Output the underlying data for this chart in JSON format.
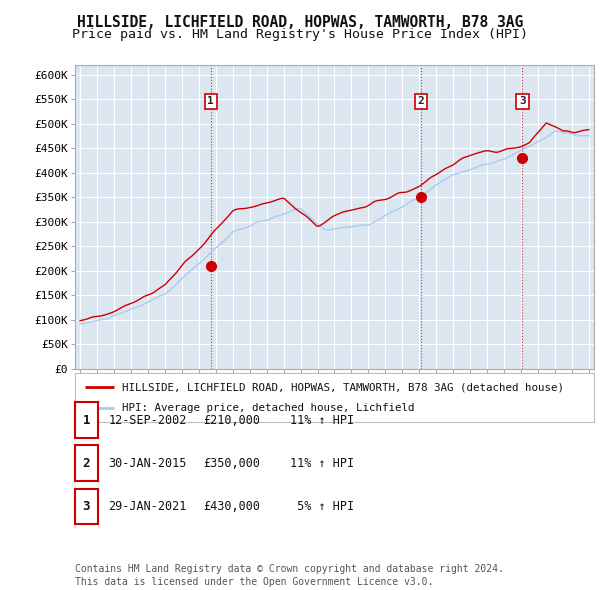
{
  "title": "HILLSIDE, LICHFIELD ROAD, HOPWAS, TAMWORTH, B78 3AG",
  "subtitle": "Price paid vs. HM Land Registry's House Price Index (HPI)",
  "ylim": [
    0,
    620000
  ],
  "yticks": [
    0,
    50000,
    100000,
    150000,
    200000,
    250000,
    300000,
    350000,
    400000,
    450000,
    500000,
    550000,
    600000
  ],
  "ytick_labels": [
    "£0",
    "£50K",
    "£100K",
    "£150K",
    "£200K",
    "£250K",
    "£300K",
    "£350K",
    "£400K",
    "£450K",
    "£500K",
    "£550K",
    "£600K"
  ],
  "title_fontsize": 10.5,
  "subtitle_fontsize": 9.5,
  "background_color": "#ffffff",
  "plot_bg_color": "#dce6f1",
  "grid_color": "#ffffff",
  "legend_label_red": "HILLSIDE, LICHFIELD ROAD, HOPWAS, TAMWORTH, B78 3AG (detached house)",
  "legend_label_blue": "HPI: Average price, detached house, Lichfield",
  "red_color": "#cc0000",
  "blue_color": "#aaccee",
  "sale_points": [
    {
      "date_num": 2002.7,
      "price": 210000,
      "label": "1"
    },
    {
      "date_num": 2015.08,
      "price": 350000,
      "label": "2"
    },
    {
      "date_num": 2021.08,
      "price": 430000,
      "label": "3"
    }
  ],
  "table_rows": [
    [
      "1",
      "12-SEP-2002",
      "£210,000",
      "11% ↑ HPI"
    ],
    [
      "2",
      "30-JAN-2015",
      "£350,000",
      "11% ↑ HPI"
    ],
    [
      "3",
      "29-JAN-2021",
      "£430,000",
      " 5% ↑ HPI"
    ]
  ],
  "footer": "Contains HM Land Registry data © Crown copyright and database right 2024.\nThis data is licensed under the Open Government Licence v3.0.",
  "vline_color": "#cc0000"
}
